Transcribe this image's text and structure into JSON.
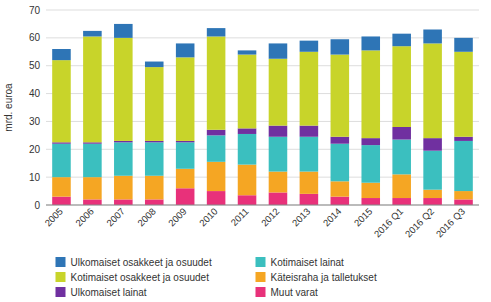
{
  "chart_data": {
    "type": "bar",
    "stacked": true,
    "ylabel": "mrd. euroa",
    "categories": [
      "2005",
      "2006",
      "2007",
      "2008",
      "2009",
      "2010",
      "2011",
      "2012",
      "2013",
      "2014",
      "2015",
      "2016 Q1",
      "2016 Q2",
      "2016 Q3"
    ],
    "series": [
      {
        "name": "Muut varat",
        "color": "#e8317a",
        "values": [
          3.0,
          2.0,
          2.0,
          2.0,
          6.0,
          5.0,
          3.5,
          4.5,
          4.0,
          3.0,
          2.5,
          2.5,
          2.5,
          2.0
        ]
      },
      {
        "name": "Käteisraha ja talletukset",
        "color": "#f5a623",
        "values": [
          7.0,
          8.0,
          8.5,
          8.5,
          7.0,
          10.5,
          11.0,
          7.5,
          8.0,
          5.5,
          5.5,
          8.5,
          3.0,
          3.0
        ]
      },
      {
        "name": "Kotimaiset lainat",
        "color": "#3bbfbf",
        "values": [
          12.0,
          12.0,
          12.0,
          12.0,
          9.5,
          9.5,
          11.0,
          12.5,
          12.5,
          13.5,
          13.5,
          12.5,
          14.0,
          18.0
        ]
      },
      {
        "name": "Ulkomaiset lainat",
        "color": "#7030a0",
        "values": [
          0.5,
          0.5,
          0.5,
          0.5,
          0.5,
          2.0,
          2.0,
          4.0,
          4.0,
          2.5,
          2.5,
          4.5,
          4.5,
          1.5
        ]
      },
      {
        "name": "Kotimaiset osakkeet ja osuudet",
        "color": "#c8d42a",
        "values": [
          29.5,
          38.0,
          37.0,
          26.5,
          30.0,
          33.5,
          26.5,
          24.0,
          26.5,
          29.5,
          31.5,
          29.0,
          34.0,
          30.5
        ]
      },
      {
        "name": "Ulkomaiset osakkeet ja osuudet",
        "color": "#2e75b6",
        "values": [
          4.0,
          2.0,
          5.0,
          2.0,
          5.0,
          3.0,
          1.5,
          5.5,
          4.0,
          5.5,
          5.0,
          4.5,
          5.0,
          5.0
        ]
      }
    ],
    "ylim": [
      0,
      70
    ],
    "yticks": [
      0,
      10,
      20,
      30,
      40,
      50,
      60,
      70
    ],
    "grid": true,
    "legend": "bottom"
  }
}
